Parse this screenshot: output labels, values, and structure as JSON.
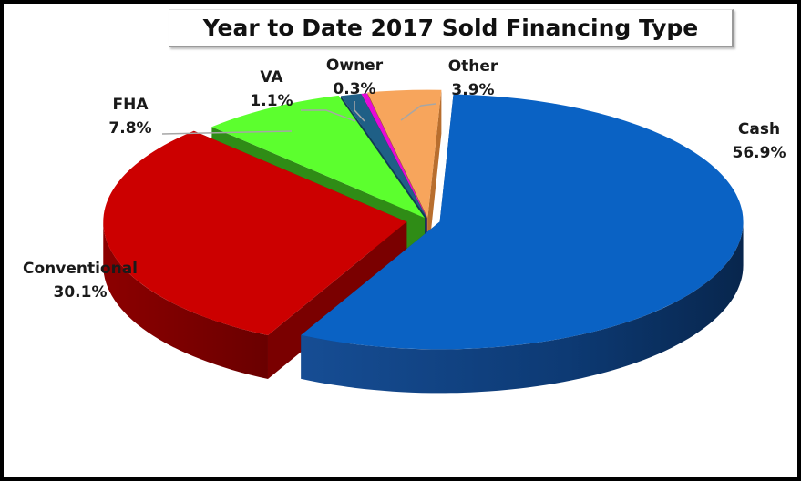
{
  "chart_data": {
    "type": "pie",
    "title": "Year to Date 2017 Sold Financing Type",
    "slices": [
      {
        "name": "Cash",
        "value": 56.9,
        "label": "56.9%",
        "color": "#0a62c4",
        "side_color": "#0c3a78"
      },
      {
        "name": "Conventional",
        "value": 30.1,
        "label": "30.1%",
        "color": "#cc0000",
        "side_color": "#7a0000"
      },
      {
        "name": "FHA",
        "value": 7.8,
        "label": "7.8%",
        "color": "#5cff2e",
        "side_color": "#2f8c16"
      },
      {
        "name": "VA",
        "value": 1.1,
        "label": "1.1%",
        "color": "#1f5f86",
        "side_color": "#103a55"
      },
      {
        "name": "Owner",
        "value": 0.3,
        "label": "0.3%",
        "color": "#e60ad8",
        "side_color": "#85067e"
      },
      {
        "name": "Other",
        "value": 3.9,
        "label": "3.9%",
        "color": "#f7a55c",
        "side_color": "#b86e2e"
      }
    ],
    "legend": "none"
  }
}
